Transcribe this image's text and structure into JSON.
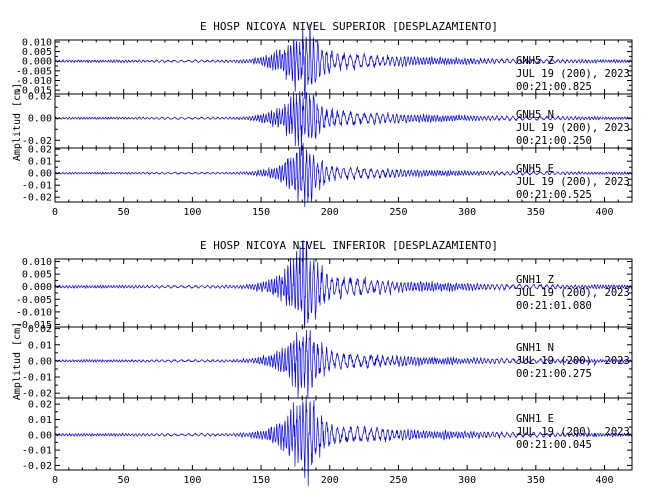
{
  "colors": {
    "trace": "#0000ff",
    "axes": "#000000"
  },
  "figure": {
    "top": {
      "title": "E HOSP NICOYA NIVEL SUPERIOR [DESPLAZAMIENTO]",
      "ylabel": "Amplitud [cm]",
      "xticks": [
        "0",
        "50",
        "100",
        "150",
        "200",
        "250",
        "300",
        "350",
        "400"
      ]
    },
    "bottom": {
      "title": "E HOSP NICOYA NIVEL INFERIOR [DESPLAZAMIENTO]",
      "ylabel": "Amplitud [cm]",
      "xticks": [
        "0",
        "50",
        "100",
        "150",
        "200",
        "250",
        "300",
        "350",
        "400"
      ]
    }
  },
  "chart_data": [
    {
      "type": "line",
      "title": "E HOSP NICOYA NIVEL SUPERIOR [DESPLAZAMIENTO]",
      "ylabel": "Amplitud [cm]",
      "xlim": [
        0,
        420
      ],
      "series": [
        {
          "name": "GNH5 Z",
          "component": "Z",
          "date": "JUL 19 (200), 2023",
          "time": "00:21:00.825",
          "ylim": [
            -0.017,
            0.011
          ],
          "yticks": [
            0.01,
            0.005,
            0.0,
            -0.005,
            -0.01,
            -0.015
          ],
          "ytick_labels": [
            "0.010",
            "0.005",
            "0.000",
            "-0.005",
            "-0.010",
            "-0.015"
          ],
          "peak": 0.016
        },
        {
          "name": "GNH5 N",
          "component": "N",
          "date": "JUL 19 (200), 2023",
          "time": "00:21:00.250",
          "ylim": [
            -0.027,
            0.022
          ],
          "yticks": [
            0.02,
            0.0,
            -0.02
          ],
          "ytick_labels": [
            "0.02",
            "0.00",
            "-0.02"
          ],
          "peak": 0.025
        },
        {
          "name": "GNH5 E",
          "component": "E",
          "date": "JUL 19 (200), 2023",
          "time": "00:21:00.525",
          "ylim": [
            -0.024,
            0.021
          ],
          "yticks": [
            0.02,
            0.01,
            0.0,
            -0.01,
            -0.02
          ],
          "ytick_labels": [
            "0.02",
            "0.01",
            "0.00",
            "-0.01",
            "-0.02"
          ],
          "peak": 0.02
        }
      ]
    },
    {
      "type": "line",
      "title": "E HOSP NICOYA NIVEL INFERIOR [DESPLAZAMIENTO]",
      "ylabel": "Amplitud [cm]",
      "xlim": [
        0,
        420
      ],
      "series": [
        {
          "name": "GNH1 Z",
          "component": "Z",
          "date": "JUL 19 (200), 2023",
          "time": "00:21:01.080",
          "ylim": [
            -0.016,
            0.011
          ],
          "yticks": [
            0.01,
            0.005,
            0.0,
            -0.005,
            -0.01,
            -0.015
          ],
          "ytick_labels": [
            "0.010",
            "0.005",
            "0.000",
            "-0.005",
            "-0.010",
            "-0.015"
          ],
          "peak": 0.014
        },
        {
          "name": "GNH1 N",
          "component": "N",
          "date": "JUL 19 (200), 2023",
          "time": "00:21:00.275",
          "ylim": [
            -0.023,
            0.021
          ],
          "yticks": [
            0.02,
            0.01,
            0.0,
            -0.01,
            -0.02
          ],
          "ytick_labels": [
            "0.02",
            "0.01",
            "0.00",
            "-0.01",
            "-0.02"
          ],
          "peak": 0.019
        },
        {
          "name": "GNH1 E",
          "component": "E",
          "date": "JUL 19 (200), 2023",
          "time": "00:21:00.045",
          "ylim": [
            -0.023,
            0.024
          ],
          "yticks": [
            0.02,
            0.01,
            0.0,
            -0.01,
            -0.02
          ],
          "ytick_labels": [
            "0.02",
            "0.01",
            "0.00",
            "-0.01",
            "-0.02"
          ],
          "peak": 0.022
        }
      ]
    }
  ]
}
